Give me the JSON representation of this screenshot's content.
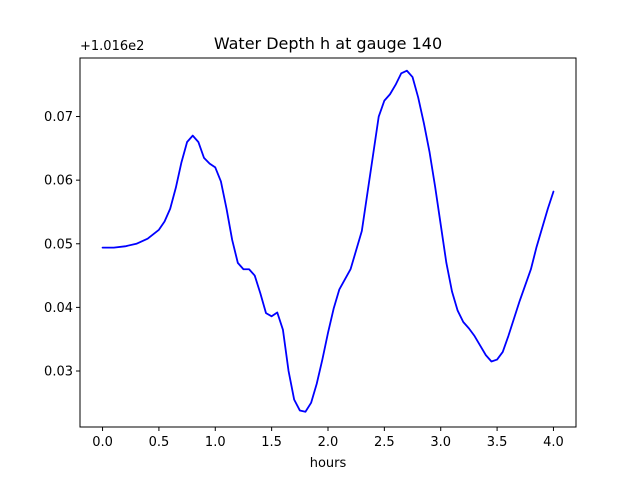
{
  "chart_data": {
    "type": "line",
    "title": "Water Depth h at gauge 140",
    "xlabel": "hours",
    "ylabel": "",
    "y_offset_label": "+1.016e2",
    "xlim": [
      -0.2,
      4.2
    ],
    "ylim": [
      0.0212,
      0.0792
    ],
    "x_ticks": [
      0.0,
      0.5,
      1.0,
      1.5,
      2.0,
      2.5,
      3.0,
      3.5,
      4.0
    ],
    "x_tick_labels": [
      "0.0",
      "0.5",
      "1.0",
      "1.5",
      "2.0",
      "2.5",
      "3.0",
      "3.5",
      "4.0"
    ],
    "y_ticks": [
      0.03,
      0.04,
      0.05,
      0.06,
      0.07
    ],
    "y_tick_labels": [
      "0.03",
      "0.04",
      "0.05",
      "0.06",
      "0.07"
    ],
    "grid": false,
    "series": [
      {
        "color": "#0000ff",
        "x": [
          0.0,
          0.1,
          0.2,
          0.3,
          0.4,
          0.5,
          0.55,
          0.6,
          0.65,
          0.7,
          0.75,
          0.8,
          0.85,
          0.9,
          0.95,
          1.0,
          1.05,
          1.1,
          1.15,
          1.2,
          1.25,
          1.3,
          1.35,
          1.4,
          1.45,
          1.5,
          1.55,
          1.6,
          1.65,
          1.7,
          1.75,
          1.8,
          1.85,
          1.9,
          1.95,
          2.0,
          2.05,
          2.1,
          2.2,
          2.3,
          2.35,
          2.4,
          2.45,
          2.5,
          2.55,
          2.6,
          2.65,
          2.7,
          2.75,
          2.8,
          2.85,
          2.9,
          2.95,
          3.0,
          3.05,
          3.1,
          3.15,
          3.2,
          3.25,
          3.3,
          3.35,
          3.4,
          3.45,
          3.5,
          3.55,
          3.6,
          3.7,
          3.8,
          3.85,
          3.9,
          3.95,
          4.0
        ],
        "values": [
          0.0494,
          0.0494,
          0.0496,
          0.05,
          0.0508,
          0.0522,
          0.0535,
          0.0555,
          0.0588,
          0.0628,
          0.066,
          0.067,
          0.066,
          0.0635,
          0.0626,
          0.062,
          0.0598,
          0.0555,
          0.0506,
          0.047,
          0.046,
          0.046,
          0.045,
          0.0422,
          0.0391,
          0.0386,
          0.0392,
          0.0365,
          0.03,
          0.0255,
          0.0238,
          0.0236,
          0.025,
          0.028,
          0.0318,
          0.036,
          0.0398,
          0.0428,
          0.046,
          0.052,
          0.058,
          0.064,
          0.07,
          0.0725,
          0.0735,
          0.075,
          0.0768,
          0.0772,
          0.0762,
          0.073,
          0.069,
          0.0645,
          0.059,
          0.053,
          0.047,
          0.0425,
          0.0395,
          0.0377,
          0.0367,
          0.0355,
          0.034,
          0.0325,
          0.0315,
          0.0318,
          0.033,
          0.0355,
          0.041,
          0.046,
          0.0495,
          0.0525,
          0.0555,
          0.0582
        ]
      }
    ]
  }
}
